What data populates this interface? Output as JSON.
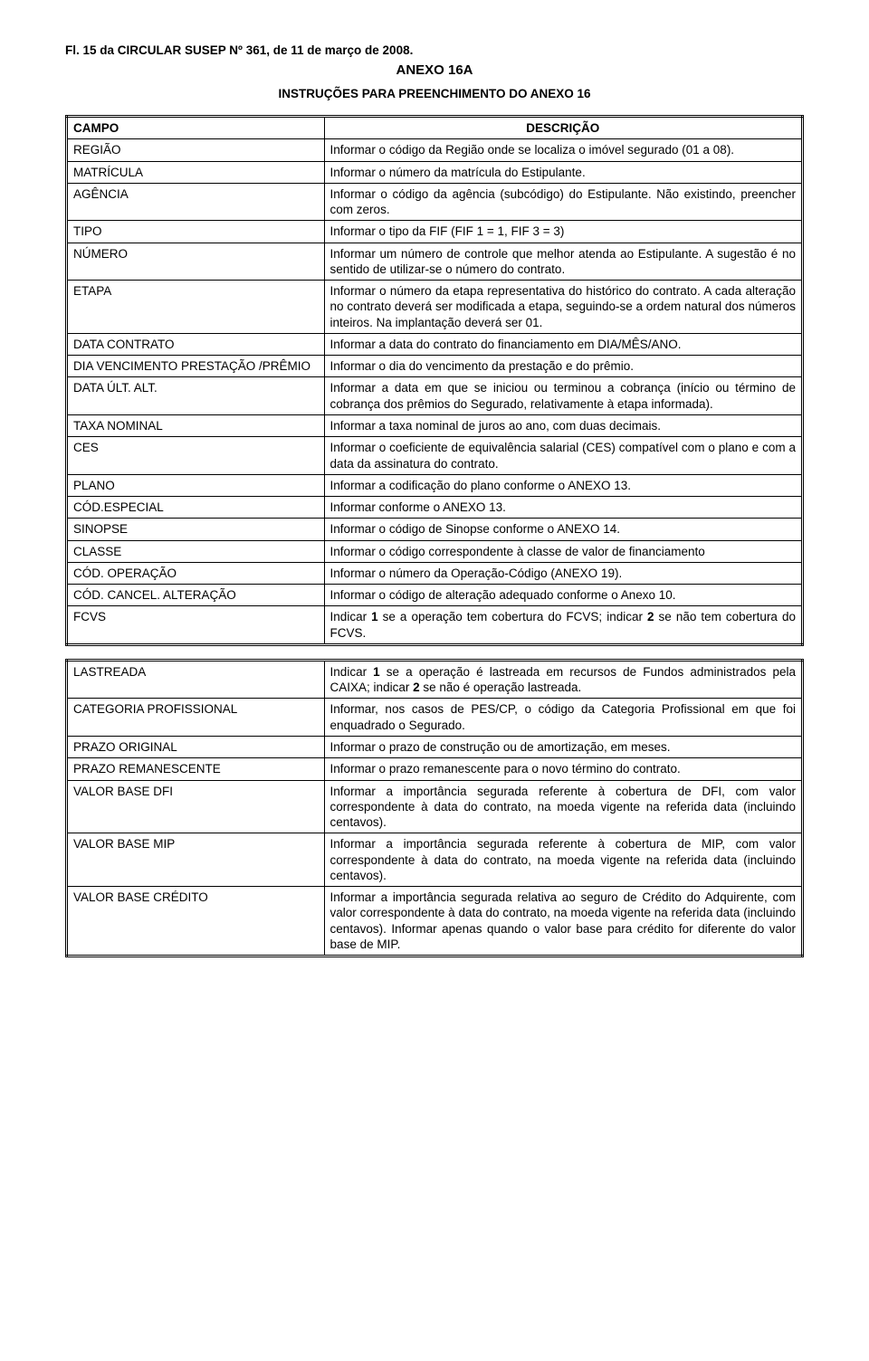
{
  "header": "Fl. 15 da CIRCULAR SUSEP Nº 361, de 11 de março de 2008.",
  "anexo_title": "ANEXO 16A",
  "subtitle": "INSTRUÇÕES PARA PREENCHIMENTO DO ANEXO 16",
  "table1": {
    "col_campo": "CAMPO",
    "col_desc": "DESCRIÇÃO",
    "rows": [
      {
        "campo": "REGIÃO",
        "desc": "Informar o código da Região onde se localiza o imóvel segurado (01 a 08)."
      },
      {
        "campo": "MATRÍCULA",
        "desc": "Informar o número da matrícula do Estipulante."
      },
      {
        "campo": "AGÊNCIA",
        "desc": "Informar o código da agência (subcódigo) do Estipulante. Não existindo, preencher com zeros."
      },
      {
        "campo": "TIPO",
        "desc": "Informar o tipo da FIF (FIF 1 = 1, FIF 3 = 3)"
      },
      {
        "campo": "NÚMERO",
        "desc": "Informar um número de controle que melhor atenda ao Estipulante. A sugestão é no sentido de utilizar-se o número do contrato."
      },
      {
        "campo": "ETAPA",
        "desc": "Informar o número da etapa representativa do histórico do contrato. A cada alteração no contrato deverá ser modificada a etapa, seguindo-se a ordem natural dos números inteiros. Na implantação deverá ser 01."
      },
      {
        "campo": "DATA CONTRATO",
        "desc": "Informar a data do contrato do financiamento em DIA/MÊS/ANO."
      },
      {
        "campo": "DIA VENCIMENTO PRESTAÇÃO /PRÊMIO",
        "desc": "Informar o dia do vencimento da prestação e do prêmio."
      },
      {
        "campo": "DATA ÚLT. ALT.",
        "desc": "Informar a data em que se iniciou ou terminou a cobrança (início ou término de cobrança dos prêmios do Segurado, relativamente à etapa informada)."
      },
      {
        "campo": "TAXA NOMINAL",
        "desc": "Informar a taxa nominal de juros ao ano, com duas decimais."
      },
      {
        "campo": "CES",
        "desc": "Informar o coeficiente de equivalência salarial (CES) compatível com o plano e com a data da assinatura do contrato."
      },
      {
        "campo": "PLANO",
        "desc": "Informar a codificação do plano conforme o ANEXO 13."
      },
      {
        "campo": "CÓD.ESPECIAL",
        "desc": "Informar conforme o ANEXO 13."
      },
      {
        "campo": "SINOPSE",
        "desc": "Informar o código de Sinopse conforme o ANEXO 14."
      },
      {
        "campo": "CLASSE",
        "desc": "Informar o código correspondente à classe de valor de financiamento"
      },
      {
        "campo": "CÓD. OPERAÇÃO",
        "desc": "Informar o número da Operação-Código (ANEXO 19)."
      },
      {
        "campo": "CÓD. CANCEL. ALTERAÇÃO",
        "desc": "Informar o código de alteração adequado conforme o Anexo 10."
      },
      {
        "campo": "FCVS",
        "desc": "Indicar 1 se a operação tem cobertura do FCVS; indicar 2 se não tem cobertura do FCVS."
      }
    ]
  },
  "table2": {
    "rows": [
      {
        "campo": "LASTREADA",
        "desc": "Indicar 1 se a operação é lastreada em recursos de Fundos administrados pela CAIXA; indicar 2 se não é operação lastreada."
      },
      {
        "campo": "CATEGORIA PROFISSIONAL",
        "desc": "Informar, nos casos de PES/CP, o código da Categoria Profissional em que foi enquadrado o Segurado."
      },
      {
        "campo": "PRAZO ORIGINAL",
        "desc": "Informar o prazo de construção ou de amortização, em meses."
      },
      {
        "campo": "PRAZO REMANESCENTE",
        "desc": "Informar o prazo remanescente para o novo término do contrato."
      },
      {
        "campo": "VALOR BASE DFI",
        "desc": "Informar a importância segurada referente à cobertura de DFI, com valor correspondente à data do contrato, na moeda vigente na referida data (incluindo centavos)."
      },
      {
        "campo": "VALOR BASE MIP",
        "desc": "Informar a importância segurada referente à cobertura de MIP, com valor correspondente à data do contrato, na moeda vigente na referida data (incluindo centavos)."
      },
      {
        "campo": "VALOR BASE CRÉDITO",
        "desc": "Informar a importância segurada relativa ao seguro de Crédito do Adquirente, com valor correspondente à data do contrato, na moeda vigente na referida data (incluindo centavos). Informar apenas quando o valor base para crédito for diferente do valor base de MIP."
      }
    ]
  },
  "bold_tokens": [
    "1",
    "2"
  ]
}
